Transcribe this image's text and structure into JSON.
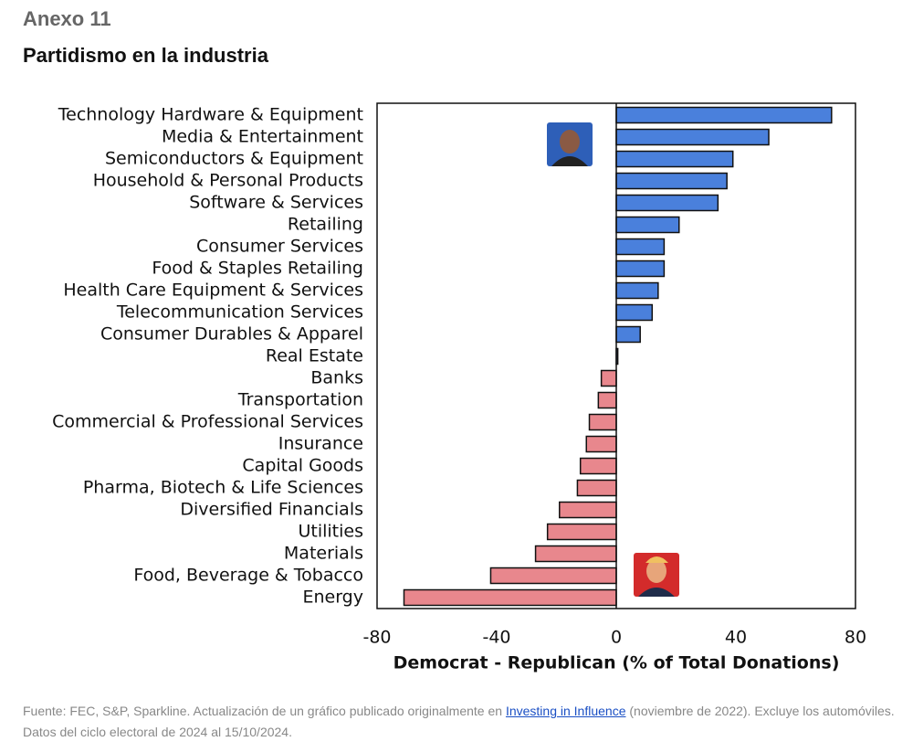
{
  "exhibit": "Anexo 11",
  "chart_data": {
    "type": "barh",
    "title": "Partidismo en la industria",
    "categories": [
      "Technology Hardware & Equipment",
      "Media & Entertainment",
      "Semiconductors & Equipment",
      "Household & Personal Products",
      "Software & Services",
      "Retailing",
      "Consumer Services",
      "Food & Staples Retailing",
      "Health Care Equipment & Services",
      "Telecommunication Services",
      "Consumer Durables & Apparel",
      "Real Estate",
      "Banks",
      "Transportation",
      "Commercial  & Professional Services",
      "Insurance",
      "Capital Goods",
      "Pharma, Biotech & Life Sciences",
      "Diversified Financials",
      "Utilities",
      "Materials",
      "Food, Beverage & Tobacco",
      "Energy"
    ],
    "values": [
      72,
      51,
      39,
      37,
      34,
      21,
      16,
      16,
      14,
      12,
      8,
      0.5,
      -5,
      -6,
      -9,
      -10,
      -12,
      -13,
      -19,
      -23,
      -27,
      -42,
      -71
    ],
    "positive_color": "#4a80dc",
    "negative_color": "#e8878d",
    "xlabel": "Democrat - Republican (% of Total Donations)",
    "xlim": [
      -80,
      80
    ],
    "xticks": [
      -80,
      -40,
      0,
      40,
      80
    ]
  },
  "footnote": {
    "before": "Fuente: FEC, S&P, Sparkline. Actualización de un gráfico publicado originalmente en ",
    "link": "Investing in Influence",
    "after": "  (noviembre de 2022). Excluye los automóviles. Datos del ciclo electoral de 2024 al 15/10/2024."
  }
}
